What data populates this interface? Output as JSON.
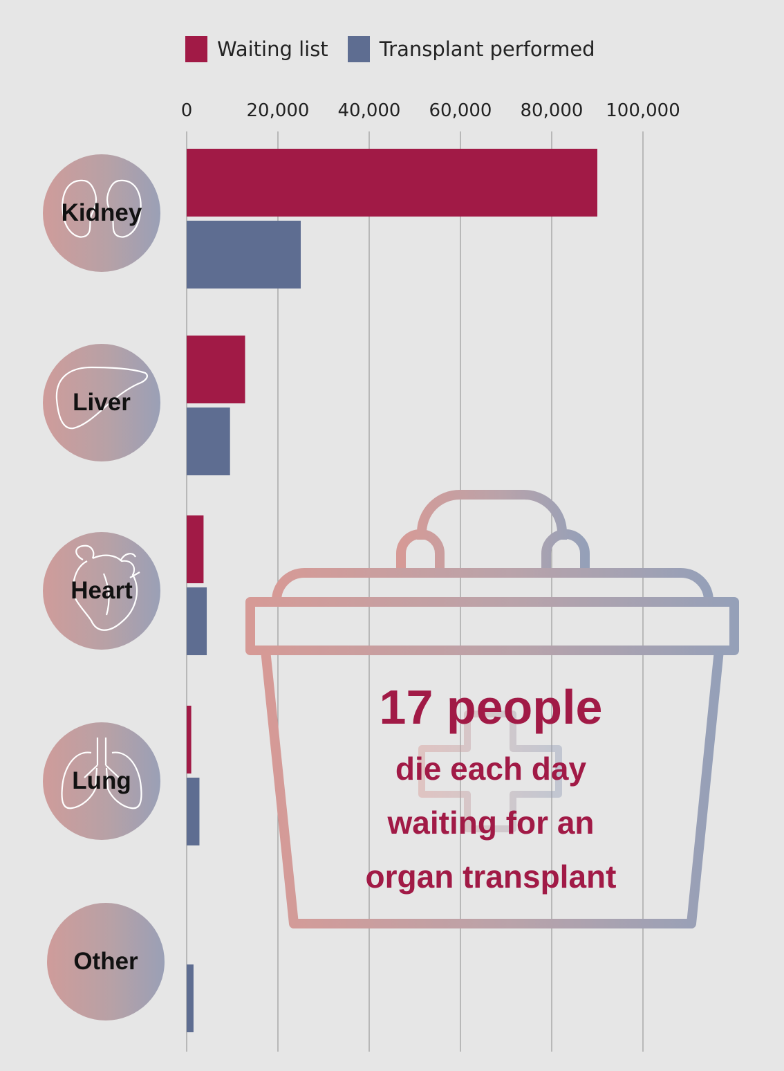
{
  "legend": [
    {
      "label": "Waiting list",
      "color": "#a11a46"
    },
    {
      "label": "Transplant performed",
      "color": "#5e6d91"
    }
  ],
  "organs": [
    {
      "label": "Kidney",
      "icon": "kidney-icon"
    },
    {
      "label": "Liver",
      "icon": "liver-icon"
    },
    {
      "label": "Heart",
      "icon": "heart-icon"
    },
    {
      "label": "Lung",
      "icon": "lung-icon"
    },
    {
      "label": "Other",
      "icon": ""
    }
  ],
  "callout": {
    "headline": "17 people",
    "line1": "die each day",
    "line2": "waiting for an",
    "line3": "organ transplant",
    "icon": "medical-cooler-icon"
  },
  "chart_data": {
    "type": "bar",
    "orientation": "horizontal",
    "categories": [
      "Kidney",
      "Liver",
      "Heart",
      "Lung",
      "Other"
    ],
    "series": [
      {
        "name": "Waiting list",
        "color": "#a11a46",
        "values": [
          90000,
          12800,
          3700,
          1000,
          0
        ]
      },
      {
        "name": "Transplant performed",
        "color": "#5e6d91",
        "values": [
          25000,
          9500,
          4400,
          2800,
          1500
        ]
      }
    ],
    "x_ticks": [
      "0",
      "20,000",
      "40,000",
      "60,000",
      "80,000",
      "100,000"
    ],
    "x_tick_values": [
      0,
      20000,
      40000,
      60000,
      80000,
      100000
    ],
    "xlim": [
      0,
      100000
    ],
    "grid": true,
    "legend_position": "top"
  }
}
